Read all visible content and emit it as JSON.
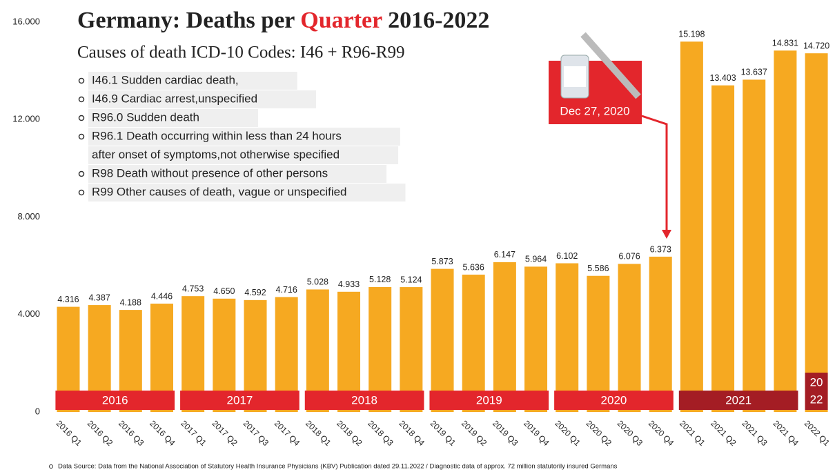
{
  "chart_data": {
    "type": "bar",
    "title": [
      "Germany: Deaths per",
      "Quarter",
      "2016-2022"
    ],
    "subtitle": "Causes of death ICD-10 Codes: I46 + R96-R99",
    "codes": [
      [
        "I46.1 Sudden cardiac death,"
      ],
      [
        "I46.9 Cardiac arrest,unspecified"
      ],
      [
        "R96.0 Sudden death"
      ],
      [
        "R96.1 Death occurring within less than 24 hours",
        "after onset of symptoms,not otherwise specified"
      ],
      [
        "R98 Death without presence of other persons"
      ],
      [
        "R99 Other causes of death, vague or unspecified"
      ]
    ],
    "annotation": "Dec 27, 2020",
    "source": "Data Source: Data from the National Association of Statutory Health Insurance Physicians (KBV) Publication dated 29.11.2022 / Diagnostic data of approx. 72 million statutorily insured Germans",
    "categories": [
      "2016 Q1",
      "2016 Q2",
      "2016 Q3",
      "2016 Q4",
      "2017 Q1",
      "2017 Q2",
      "2017 Q3",
      "2017 Q4",
      "2018 Q1",
      "2018 Q2",
      "2018 Q3",
      "2018 Q4",
      "2019 Q1",
      "2019 Q2",
      "2019 Q3",
      "2019 Q4",
      "2020 Q1",
      "2020 Q2",
      "2020 Q3",
      "2020 Q4",
      "2021 Q1",
      "2021 Q2",
      "2021 Q3",
      "2021 Q4",
      "2022 Q1"
    ],
    "values": [
      4316,
      4387,
      4188,
      4446,
      4753,
      4650,
      4592,
      4716,
      5028,
      4933,
      5128,
      5124,
      5873,
      5636,
      6147,
      5964,
      6102,
      5586,
      6076,
      6373,
      15198,
      13403,
      13637,
      14831,
      14720
    ],
    "value_labels": [
      "4.316",
      "4.387",
      "4.188",
      "4.446",
      "4.753",
      "4.650",
      "4.592",
      "4.716",
      "5.028",
      "4.933",
      "5.128",
      "5.124",
      "5.873",
      "5.636",
      "6.147",
      "5.964",
      "6.102",
      "5.586",
      "6.076",
      "6.373",
      "15.198",
      "13.403",
      "13.637",
      "14.831",
      "14.720"
    ],
    "color": "#f6a921",
    "year_bands": [
      "2016",
      "2017",
      "2018",
      "2019",
      "2020",
      "2021",
      [
        "20",
        "22"
      ]
    ],
    "band_colors": [
      "#e3262c",
      "#e3262c",
      "#e3262c",
      "#e3262c",
      "#e3262c",
      "#a41d24",
      "#a41d24"
    ],
    "ylim": [
      0,
      16000
    ],
    "yticks": [
      0,
      {
        "value": 4000,
        "label": "4.000"
      },
      {
        "value": 8000,
        "label": "8.000"
      },
      {
        "value": 12000,
        "label": "12.000"
      },
      {
        "value": 16000,
        "label": "16.000"
      }
    ],
    "grid": false
  }
}
